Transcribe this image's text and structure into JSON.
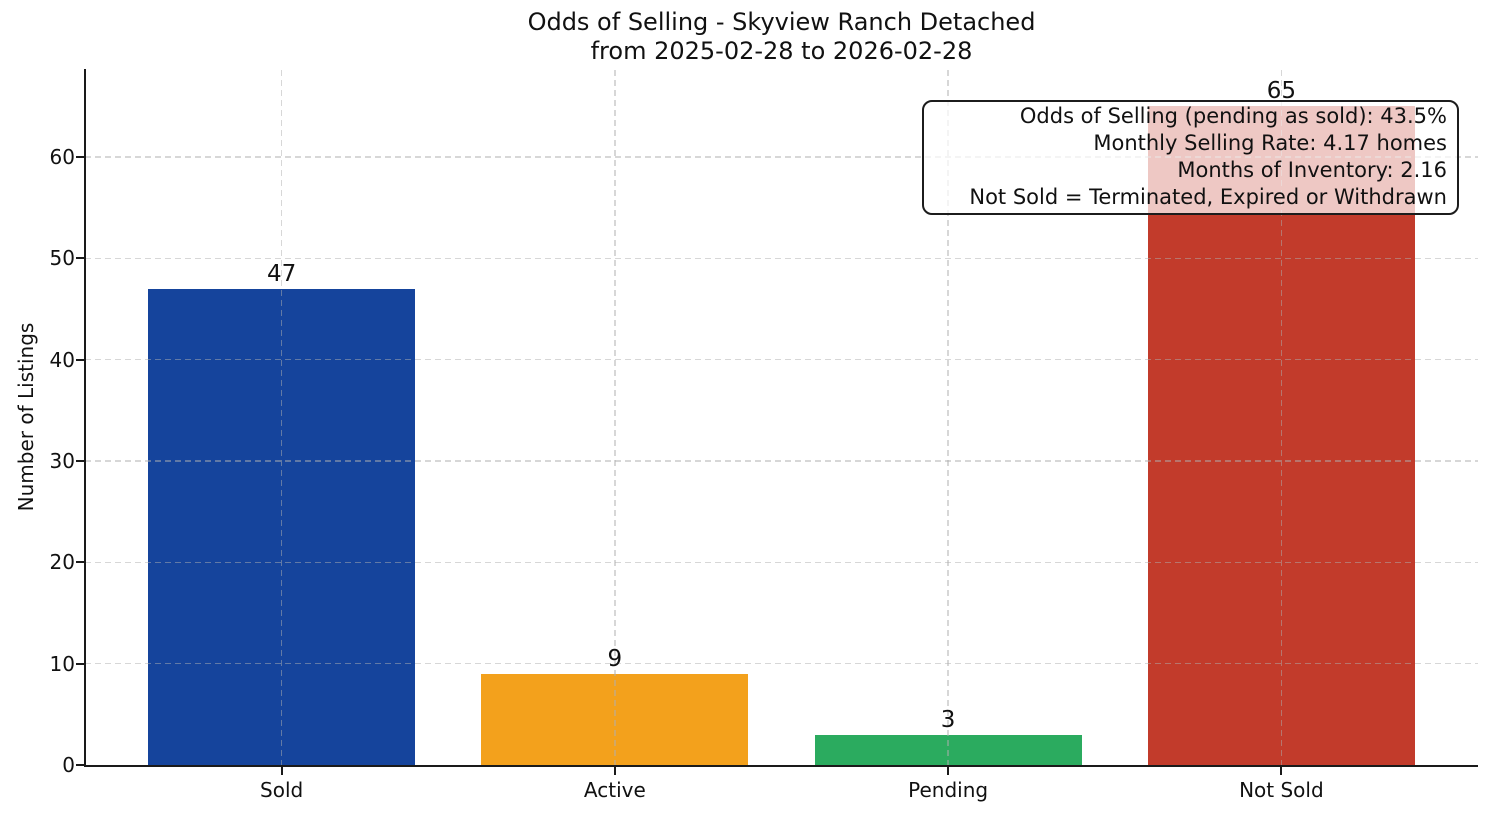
{
  "chart_data": {
    "type": "bar",
    "title": "Odds of Selling - Skyview Ranch Detached",
    "subtitle": "from 2025-02-28 to 2026-02-28",
    "categories": [
      "Sold",
      "Active",
      "Pending",
      "Not Sold"
    ],
    "values": [
      47,
      9,
      3,
      65
    ],
    "bar_labels": [
      "47",
      "9",
      "3",
      "65"
    ],
    "bar_colors": [
      "#15449c",
      "#f3a11c",
      "#2bab5f",
      "#c23b2b"
    ],
    "xlabel": "",
    "ylabel": "Number of Listings",
    "yticks": [
      0,
      10,
      20,
      30,
      40,
      50,
      60
    ],
    "ylim": [
      0,
      68.6
    ],
    "grid": "dashed",
    "grid_on": true,
    "legend": "none",
    "colors": {
      "grid": "rgba(175,175,175,0.5)",
      "spine": "#1a1a1a",
      "annotation_border": "#1c1c1c",
      "annotation_background": "rgba(255,255,255,0.72)"
    },
    "annotation": {
      "position": "top-right",
      "lines": [
        "Odds of Selling (pending as sold): 43.5%",
        "Monthly Selling Rate: 4.17 homes",
        "Months of Inventory: 2.16",
        "Not Sold = Terminated, Expired or Withdrawn"
      ]
    }
  }
}
